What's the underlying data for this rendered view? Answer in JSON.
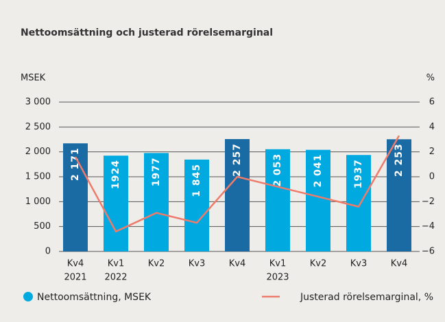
{
  "chart_data": {
    "type": "bar",
    "title": "Nettoomsättning och justerad rörelsemarginal",
    "y_label": "MSEK",
    "y2_label": "%",
    "categories": [
      "Kv4",
      "Kv1",
      "Kv2",
      "Kv3",
      "Kv4",
      "Kv1",
      "Kv2",
      "Kv3",
      "Kv4"
    ],
    "years": [
      "2021",
      "2022",
      null,
      null,
      null,
      "2023",
      null,
      null,
      null
    ],
    "series": [
      {
        "name": "Nettoomsättning, MSEK",
        "type": "bar",
        "color": "#00a9e0",
        "colors": [
          "#1a6aa3",
          "#00a9e0",
          "#00a9e0",
          "#00a9e0",
          "#1a6aa3",
          "#00a9e0",
          "#00a9e0",
          "#00a9e0",
          "#1a6aa3"
        ],
        "values": [
          2171,
          1924,
          1977,
          1845,
          2257,
          2053,
          2041,
          1937,
          2253
        ],
        "value_labels": [
          "2 171",
          "1924",
          "1977",
          "1 845",
          "2 257",
          "2 053",
          "2 041",
          "1937",
          "2 253"
        ]
      },
      {
        "name": "Justerad rörelsemarginal, %",
        "type": "line",
        "color": "#ef7b6b",
        "axis": "y2",
        "values": [
          1.6,
          -4.4,
          -2.9,
          -3.7,
          0.0,
          -0.8,
          -1.6,
          -2.4,
          3.3
        ]
      }
    ],
    "ylim": [
      0,
      3000
    ],
    "yticks": [
      0,
      500,
      {
        "value": 1000,
        "label": "1 000"
      },
      {
        "value": 1500,
        "label": "1 500"
      },
      {
        "value": 2000,
        "label": "2 000"
      },
      {
        "value": 2500,
        "label": "2 500"
      },
      {
        "value": 3000,
        "label": "3 000"
      }
    ],
    "y2lim": [
      -6,
      6
    ],
    "y2ticks": [
      {
        "value": -6,
        "label": "−6"
      },
      {
        "value": -4,
        "label": "−4"
      },
      {
        "value": -2,
        "label": "−2"
      },
      0,
      2,
      4,
      6
    ],
    "grid": true,
    "legend": "bottom"
  }
}
